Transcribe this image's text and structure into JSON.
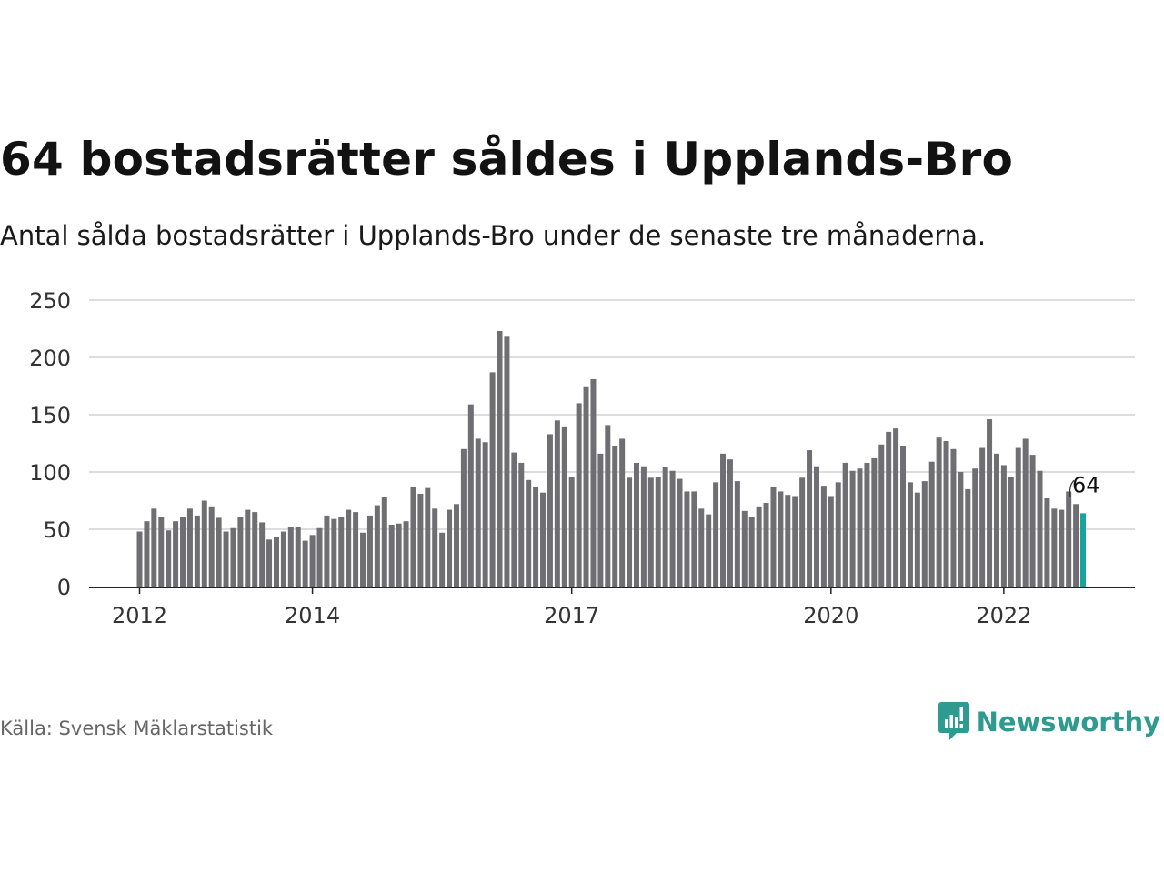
{
  "title": "64 bostadsrätter såldes i Upplands-Bro",
  "subtitle": "Antal sålda bostadsrätter i Upplands-Bro under de senaste tre månaderna.",
  "source": "Källa: Svensk Mäklarstatistik",
  "brand": {
    "name": "Newsworthy",
    "icon": "newsworthy-logo-icon"
  },
  "colors": {
    "bar": "#6f6e73",
    "highlight": "#1aa39a",
    "grid": "#dddddd",
    "brand": "#2e9a90",
    "axis": "#222222"
  },
  "chart_data": {
    "type": "bar",
    "title": "64 bostadsrätter såldes i Upplands-Bro",
    "xlabel": "",
    "ylabel": "",
    "ylim": [
      0,
      250
    ],
    "yticks": [
      0,
      50,
      100,
      150,
      200,
      250
    ],
    "grid": true,
    "x_start": "2012-01",
    "x_end": "2022-12",
    "xtick_labels": [
      {
        "label": "2012",
        "index": 0
      },
      {
        "label": "2014",
        "index": 24
      },
      {
        "label": "2017",
        "index": 60
      },
      {
        "label": "2020",
        "index": 96
      },
      {
        "label": "2022",
        "index": 120
      }
    ],
    "values": [
      48,
      57,
      68,
      61,
      49,
      57,
      61,
      68,
      62,
      75,
      70,
      60,
      48,
      51,
      61,
      67,
      65,
      56,
      41,
      43,
      48,
      52,
      52,
      40,
      45,
      51,
      62,
      59,
      61,
      67,
      65,
      47,
      62,
      71,
      78,
      54,
      55,
      57,
      87,
      81,
      86,
      68,
      47,
      67,
      72,
      120,
      159,
      129,
      126,
      187,
      223,
      218,
      117,
      108,
      93,
      87,
      82,
      133,
      145,
      139,
      96,
      160,
      174,
      181,
      116,
      141,
      123,
      129,
      95,
      108,
      105,
      95,
      96,
      104,
      101,
      94,
      83,
      83,
      68,
      63,
      91,
      116,
      111,
      92,
      66,
      61,
      70,
      73,
      87,
      83,
      80,
      79,
      95,
      119,
      105,
      88,
      79,
      91,
      108,
      101,
      103,
      108,
      112,
      124,
      135,
      138,
      123,
      91,
      82,
      92,
      109,
      130,
      127,
      120,
      100,
      85,
      103,
      121,
      146,
      116,
      106,
      96,
      121,
      129,
      115,
      101,
      77,
      68,
      67,
      83,
      72,
      64
    ],
    "highlight_last": true,
    "annotation": {
      "text": "64",
      "index": 131
    }
  }
}
